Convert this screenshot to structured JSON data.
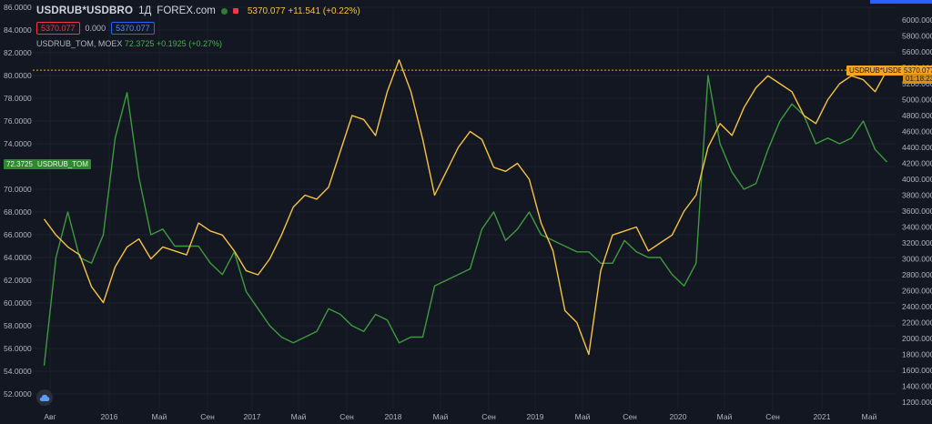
{
  "header": {
    "symbol": "USDRUB*USDBRO",
    "interval": "1Д",
    "source": "FOREX.com",
    "last_values": "5370.077 +11.541 (+0.22%)",
    "sell_box": "5370.077",
    "spread": "0.000",
    "buy_box": "5370.077",
    "secondary_symbol": "USDRUB_TOM, MOEX",
    "secondary_values": "72.3725 +0.1925 (+0.27%)"
  },
  "tags": {
    "left_label": "USDRUB_TOM",
    "left_value": "72.3725",
    "right_label": "USDRUB*USDBRO",
    "right_value": "5370.077",
    "right_countdown": "01:18:23"
  },
  "colors": {
    "background": "#131722",
    "green_series": "#3e9a3e",
    "orange_series": "#f6c343"
  },
  "chart_data": {
    "type": "line",
    "x_tick_labels": [
      "Авг",
      "2016",
      "Май",
      "Сен",
      "2017",
      "Май",
      "Сен",
      "2018",
      "Май",
      "Сен",
      "2019",
      "Май",
      "Сен",
      "2020",
      "Май",
      "Сен",
      "2021",
      "Май"
    ],
    "left_axis": {
      "min": 52,
      "max": 86,
      "ticks": [
        "86.0000",
        "84.0000",
        "82.0000",
        "80.0000",
        "78.0000",
        "76.0000",
        "74.0000",
        "72.0000",
        "70.0000",
        "68.0000",
        "66.0000",
        "64.0000",
        "62.0000",
        "60.0000",
        "58.0000",
        "56.0000",
        "54.0000",
        "52.0000"
      ]
    },
    "right_axis": {
      "min": 1200,
      "max": 6000,
      "ticks": [
        "6000.000",
        "5800.000",
        "5600.000",
        "5400.000",
        "5200.000",
        "5000.000",
        "4800.000",
        "4600.000",
        "4400.000",
        "4200.000",
        "4000.000",
        "3800.000",
        "3600.000",
        "3400.000",
        "3200.000",
        "3000.000",
        "2800.000",
        "2600.000",
        "2400.000",
        "2200.000",
        "2000.000",
        "1800.000",
        "1600.000",
        "1400.000",
        "1200.000"
      ]
    },
    "series": [
      {
        "name": "USDRUB_TOM",
        "axis": "left",
        "x": [
          "2015-07",
          "2015-08",
          "2015-09",
          "2015-10",
          "2015-11",
          "2015-12",
          "2016-01",
          "2016-02",
          "2016-03",
          "2016-04",
          "2016-05",
          "2016-06",
          "2016-07",
          "2016-08",
          "2016-09",
          "2016-10",
          "2016-11",
          "2016-12",
          "2017-01",
          "2017-02",
          "2017-03",
          "2017-04",
          "2017-05",
          "2017-06",
          "2017-07",
          "2017-08",
          "2017-09",
          "2017-10",
          "2017-11",
          "2017-12",
          "2018-01",
          "2018-02",
          "2018-03",
          "2018-04",
          "2018-05",
          "2018-06",
          "2018-07",
          "2018-08",
          "2018-09",
          "2018-10",
          "2018-11",
          "2018-12",
          "2019-01",
          "2019-02",
          "2019-03",
          "2019-04",
          "2019-05",
          "2019-06",
          "2019-07",
          "2019-08",
          "2019-09",
          "2019-10",
          "2019-11",
          "2019-12",
          "2020-01",
          "2020-02",
          "2020-03",
          "2020-04",
          "2020-05",
          "2020-06",
          "2020-07",
          "2020-08",
          "2020-09",
          "2020-10",
          "2020-11",
          "2020-12",
          "2021-01",
          "2021-02",
          "2021-03",
          "2021-04",
          "2021-05",
          "2021-06"
        ],
        "values": [
          54.5,
          64.0,
          68.0,
          64.0,
          63.5,
          66.0,
          74.5,
          78.5,
          71.0,
          66.0,
          66.5,
          65.0,
          65.0,
          65.0,
          63.5,
          62.5,
          64.5,
          61.0,
          59.5,
          58.0,
          57.0,
          56.5,
          57.0,
          57.5,
          59.5,
          59.0,
          58.0,
          57.5,
          59.0,
          58.5,
          56.5,
          57.0,
          57.0,
          61.5,
          62.0,
          62.5,
          63.0,
          66.5,
          68.0,
          65.5,
          66.5,
          68.0,
          66.0,
          65.5,
          65.0,
          64.5,
          64.5,
          63.5,
          63.5,
          65.5,
          64.5,
          64.0,
          64.0,
          62.5,
          61.5,
          63.5,
          80.0,
          74.0,
          71.5,
          70.0,
          70.5,
          73.5,
          76.0,
          77.5,
          76.5,
          74.0,
          74.5,
          74.0,
          74.5,
          76.0,
          73.5,
          72.4
        ]
      },
      {
        "name": "USDRUB*USDBRO",
        "axis": "right",
        "x": [
          "2015-07",
          "2015-08",
          "2015-09",
          "2015-10",
          "2015-11",
          "2015-12",
          "2016-01",
          "2016-02",
          "2016-03",
          "2016-04",
          "2016-05",
          "2016-06",
          "2016-07",
          "2016-08",
          "2016-09",
          "2016-10",
          "2016-11",
          "2016-12",
          "2017-01",
          "2017-02",
          "2017-03",
          "2017-04",
          "2017-05",
          "2017-06",
          "2017-07",
          "2017-08",
          "2017-09",
          "2017-10",
          "2017-11",
          "2017-12",
          "2018-01",
          "2018-02",
          "2018-03",
          "2018-04",
          "2018-05",
          "2018-06",
          "2018-07",
          "2018-08",
          "2018-09",
          "2018-10",
          "2018-11",
          "2018-12",
          "2019-01",
          "2019-02",
          "2019-03",
          "2019-04",
          "2019-05",
          "2019-06",
          "2019-07",
          "2019-08",
          "2019-09",
          "2019-10",
          "2019-11",
          "2019-12",
          "2020-01",
          "2020-02",
          "2020-03",
          "2020-04",
          "2020-05",
          "2020-06",
          "2020-07",
          "2020-08",
          "2020-09",
          "2020-10",
          "2020-11",
          "2020-12",
          "2021-01",
          "2021-02",
          "2021-03",
          "2021-04",
          "2021-05",
          "2021-06"
        ],
        "values": [
          3500,
          3300,
          3150,
          3050,
          2650,
          2450,
          2900,
          3150,
          3250,
          3000,
          3150,
          3100,
          3050,
          3450,
          3350,
          3300,
          3100,
          2850,
          2800,
          3000,
          3300,
          3650,
          3800,
          3750,
          3900,
          4350,
          4800,
          4750,
          4550,
          5100,
          5500,
          5100,
          4500,
          3800,
          4100,
          4400,
          4600,
          4500,
          4150,
          4100,
          4200,
          4000,
          3450,
          3100,
          2350,
          2200,
          1800,
          2850,
          3300,
          3350,
          3400,
          3100,
          3200,
          3300,
          3600,
          3800,
          4400,
          4700,
          4550,
          4900,
          5150,
          5300,
          5200,
          5100,
          4800,
          4700,
          5000,
          5200,
          5300,
          5250,
          5100,
          5370
        ]
      }
    ]
  }
}
